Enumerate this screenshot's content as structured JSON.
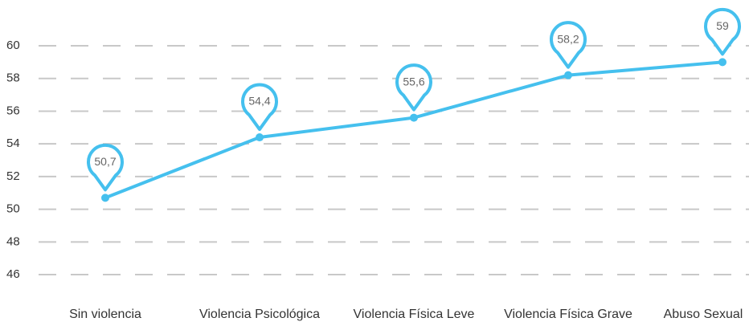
{
  "chart_data": {
    "type": "line",
    "categories": [
      "Sin  violencia",
      "Violencia Psicológica",
      "Violencia Física Leve",
      "Violencia Física Grave",
      "Abuso Sexual"
    ],
    "series": [
      {
        "color": "#45c0ee",
        "values": [
          50.7,
          54.4,
          55.6,
          58.2,
          59
        ],
        "value_labels": [
          "50,7",
          "54,4",
          "55,6",
          "58,2",
          "59"
        ]
      }
    ],
    "ylim": [
      45,
      62
    ],
    "yticks": [
      46,
      48,
      50,
      52,
      54,
      56,
      58,
      60
    ],
    "grid": true
  }
}
